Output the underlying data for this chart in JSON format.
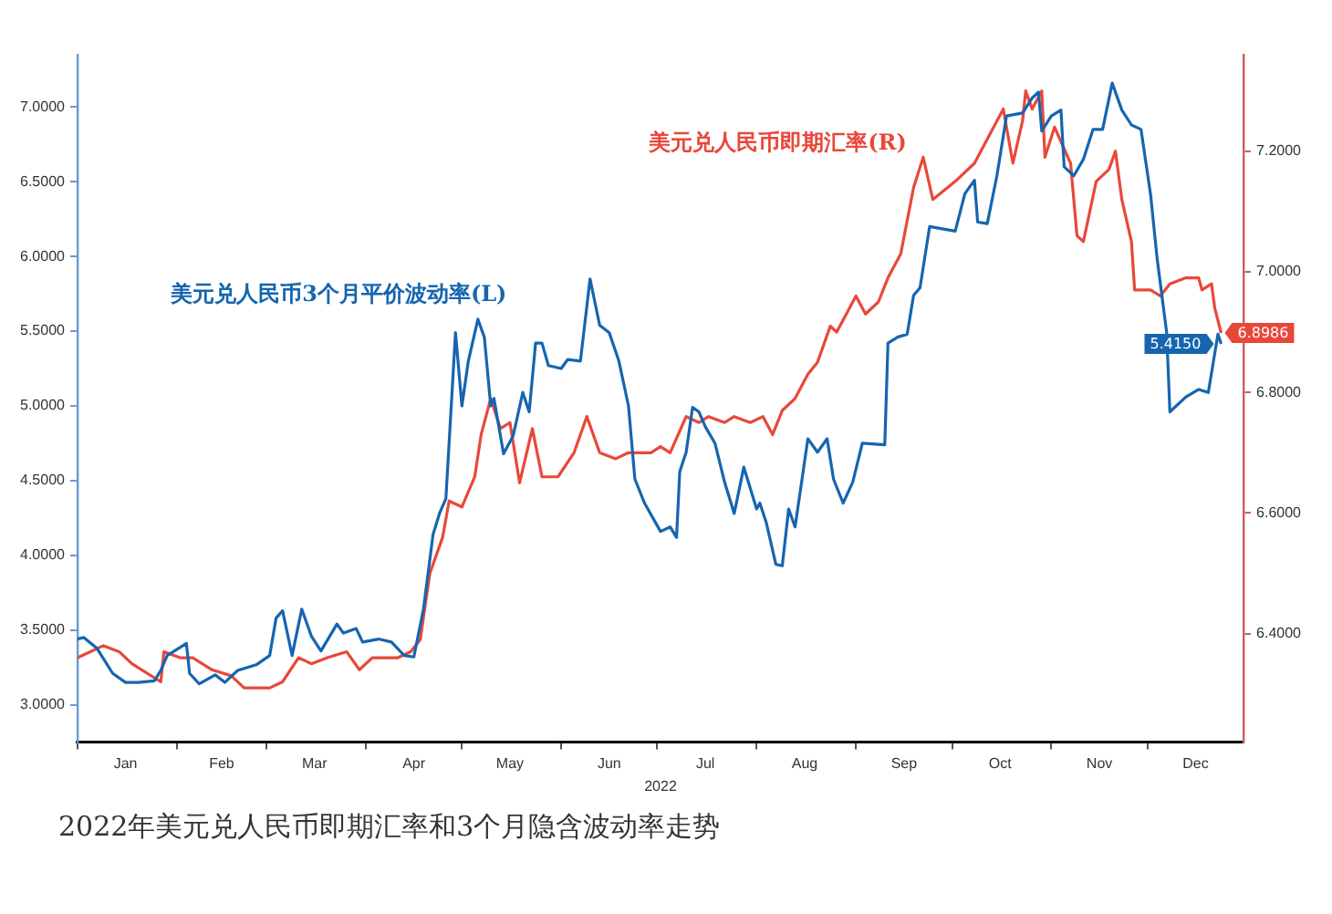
{
  "chart_data": {
    "type": "line",
    "title": "2022年美元兑人民币即期汇率和3个月隐含波动率走势",
    "xlabel": "2022",
    "xlim": [
      "2022-01-01",
      "2022-12-31"
    ],
    "xticks": [
      {
        "value": "2022-01-01",
        "label": null
      },
      {
        "value": "2022-01-16",
        "label": "Jan"
      },
      {
        "value": "2022-02-01",
        "label": null
      },
      {
        "value": "2022-02-15",
        "label": "Feb"
      },
      {
        "value": "2022-03-01",
        "label": null
      },
      {
        "value": "2022-03-16",
        "label": "Mar"
      },
      {
        "value": "2022-04-01",
        "label": null
      },
      {
        "value": "2022-04-16",
        "label": "Apr"
      },
      {
        "value": "2022-05-01",
        "label": null
      },
      {
        "value": "2022-05-16",
        "label": "May"
      },
      {
        "value": "2022-06-01",
        "label": null
      },
      {
        "value": "2022-06-16",
        "label": "Jun"
      },
      {
        "value": "2022-07-01",
        "label": null
      },
      {
        "value": "2022-07-16",
        "label": "Jul"
      },
      {
        "value": "2022-08-01",
        "label": null
      },
      {
        "value": "2022-08-16",
        "label": "Aug"
      },
      {
        "value": "2022-09-01",
        "label": null
      },
      {
        "value": "2022-09-16",
        "label": "Sep"
      },
      {
        "value": "2022-10-01",
        "label": null
      },
      {
        "value": "2022-10-16",
        "label": "Oct"
      },
      {
        "value": "2022-11-01",
        "label": null
      },
      {
        "value": "2022-11-16",
        "label": "Nov"
      },
      {
        "value": "2022-12-01",
        "label": null
      },
      {
        "value": "2022-12-16",
        "label": "Dec"
      }
    ],
    "ylim": [
      2.75,
      7.35
    ],
    "yticks": [
      {
        "value": 3,
        "label": "3.0000"
      },
      {
        "value": 3.5,
        "label": "3.5000"
      },
      {
        "value": 4,
        "label": "4.0000"
      },
      {
        "value": 4.5,
        "label": "4.5000"
      },
      {
        "value": 5,
        "label": "5.0000"
      },
      {
        "value": 5.5,
        "label": "5.5000"
      },
      {
        "value": 6,
        "label": "6.0000"
      },
      {
        "value": 6.5,
        "label": "6.5000"
      },
      {
        "value": 7,
        "label": "7.0000"
      }
    ],
    "y2lim": [
      6.22,
      7.36
    ],
    "y2ticks": [
      {
        "value": 6.4,
        "label": "6.4000"
      },
      {
        "value": 6.6,
        "label": "6.6000"
      },
      {
        "value": 6.8,
        "label": "6.8000"
      },
      {
        "value": 7,
        "label": "7.0000"
      },
      {
        "value": 7.2,
        "label": "7.2000"
      }
    ],
    "grid": false,
    "legend": false,
    "marker": "none",
    "line_style": "solid",
    "series": [
      {
        "name": "美元兑人民币3个月平价波动率(L)",
        "color": "#1565b0",
        "axis": "y",
        "x": [
          "2022-01-01",
          "2022-01-03",
          "2022-01-07",
          "2022-01-12",
          "2022-01-16",
          "2022-01-20",
          "2022-01-25",
          "2022-01-27",
          "2022-01-29",
          "2022-02-04",
          "2022-02-05",
          "2022-02-08",
          "2022-02-13",
          "2022-02-16",
          "2022-02-20",
          "2022-02-26",
          "2022-03-02",
          "2022-03-04",
          "2022-03-06",
          "2022-03-09",
          "2022-03-12",
          "2022-03-15",
          "2022-03-18",
          "2022-03-23",
          "2022-03-25",
          "2022-03-29",
          "2022-03-31",
          "2022-04-05",
          "2022-04-09",
          "2022-04-13",
          "2022-04-16",
          "2022-04-19",
          "2022-04-22",
          "2022-04-24",
          "2022-04-26",
          "2022-04-27",
          "2022-04-29",
          "2022-05-01",
          "2022-05-03",
          "2022-05-06",
          "2022-05-08",
          "2022-05-10",
          "2022-05-11",
          "2022-05-14",
          "2022-05-17",
          "2022-05-20",
          "2022-05-22",
          "2022-05-24",
          "2022-05-26",
          "2022-05-28",
          "2022-06-01",
          "2022-06-03",
          "2022-06-07",
          "2022-06-10",
          "2022-06-13",
          "2022-06-16",
          "2022-06-19",
          "2022-06-22",
          "2022-06-24",
          "2022-06-27",
          "2022-07-02",
          "2022-07-05",
          "2022-07-07",
          "2022-07-08",
          "2022-07-10",
          "2022-07-12",
          "2022-07-14",
          "2022-07-16",
          "2022-07-19",
          "2022-07-22",
          "2022-07-25",
          "2022-07-28",
          "2022-08-01",
          "2022-08-02",
          "2022-08-04",
          "2022-08-07",
          "2022-08-09",
          "2022-08-11",
          "2022-08-13",
          "2022-08-17",
          "2022-08-20",
          "2022-08-23",
          "2022-08-25",
          "2022-08-28",
          "2022-08-31",
          "2022-09-03",
          "2022-09-10",
          "2022-09-11",
          "2022-09-14",
          "2022-09-17",
          "2022-09-19",
          "2022-09-21",
          "2022-09-24",
          "2022-10-02",
          "2022-10-05",
          "2022-10-08",
          "2022-10-09",
          "2022-10-12",
          "2022-10-15",
          "2022-10-18",
          "2022-10-23",
          "2022-10-26",
          "2022-10-28",
          "2022-10-29",
          "2022-11-01",
          "2022-11-04",
          "2022-11-05",
          "2022-11-08",
          "2022-11-11",
          "2022-11-14",
          "2022-11-17",
          "2022-11-20",
          "2022-11-23",
          "2022-11-26",
          "2022-11-29",
          "2022-12-02",
          "2022-12-04",
          "2022-12-07",
          "2022-12-08",
          "2022-12-13",
          "2022-12-17",
          "2022-12-20",
          "2022-12-23",
          "2022-12-24"
        ],
        "values": [
          3.44,
          3.45,
          3.38,
          3.21,
          3.15,
          3.15,
          3.16,
          3.23,
          3.33,
          3.41,
          3.21,
          3.14,
          3.2,
          3.15,
          3.23,
          3.27,
          3.33,
          3.58,
          3.63,
          3.33,
          3.64,
          3.46,
          3.36,
          3.54,
          3.48,
          3.51,
          3.42,
          3.44,
          3.42,
          3.33,
          3.32,
          3.64,
          4.14,
          4.28,
          4.38,
          4.75,
          5.49,
          5.0,
          5.3,
          5.58,
          5.46,
          5.0,
          5.05,
          4.68,
          4.8,
          5.09,
          4.96,
          5.42,
          5.42,
          5.27,
          5.25,
          5.31,
          5.3,
          5.85,
          5.54,
          5.49,
          5.3,
          5.0,
          4.51,
          4.35,
          4.16,
          4.19,
          4.12,
          4.56,
          4.69,
          4.99,
          4.96,
          4.86,
          4.75,
          4.49,
          4.28,
          4.59,
          4.31,
          4.35,
          4.22,
          3.94,
          3.93,
          4.31,
          4.19,
          4.78,
          4.69,
          4.78,
          4.51,
          4.35,
          4.49,
          4.75,
          4.74,
          5.42,
          5.46,
          5.48,
          5.74,
          5.79,
          6.2,
          6.17,
          6.42,
          6.51,
          6.23,
          6.22,
          6.54,
          6.94,
          6.96,
          7.06,
          7.1,
          6.84,
          6.94,
          6.98,
          6.6,
          6.54,
          6.65,
          6.85,
          6.85,
          7.16,
          6.98,
          6.88,
          6.85,
          6.41,
          5.99,
          5.49,
          4.96,
          5.06,
          5.11,
          5.09,
          5.48,
          5.415
        ],
        "value_labels": [
          null,
          null,
          null,
          null,
          null,
          null,
          null,
          null,
          null,
          null,
          null,
          null,
          null,
          null,
          null,
          null,
          null,
          null,
          null,
          null,
          null,
          null,
          null,
          null,
          null,
          null,
          null,
          null,
          null,
          null,
          null,
          null,
          null,
          null,
          null,
          null,
          null,
          null,
          null,
          null,
          null,
          null,
          null,
          null,
          null,
          null,
          null,
          null,
          null,
          null,
          null,
          null,
          null,
          null,
          null,
          null,
          null,
          null,
          null,
          null,
          null,
          null,
          null,
          null,
          null,
          null,
          null,
          null,
          null,
          null,
          null,
          null,
          null,
          null,
          null,
          null,
          null,
          null,
          null,
          null,
          null,
          null,
          null,
          null,
          null,
          null,
          null,
          null,
          null,
          null,
          null,
          null,
          null,
          null,
          null,
          null,
          null,
          null,
          null,
          null,
          null,
          null,
          null,
          null,
          null,
          null,
          null,
          null,
          null,
          null,
          null,
          null,
          null,
          null,
          null,
          null,
          null,
          null,
          null,
          null,
          null,
          null,
          null,
          "5.4150"
        ]
      },
      {
        "name": "美元兑人民币即期汇率(R)",
        "color": "#e8483a",
        "axis": "y2",
        "x": [
          "2022-01-01",
          "2022-01-05",
          "2022-01-09",
          "2022-01-14",
          "2022-01-18",
          "2022-01-24",
          "2022-01-27",
          "2022-01-28",
          "2022-02-02",
          "2022-02-06",
          "2022-02-12",
          "2022-02-18",
          "2022-02-22",
          "2022-02-26",
          "2022-03-02",
          "2022-03-06",
          "2022-03-11",
          "2022-03-15",
          "2022-03-20",
          "2022-03-26",
          "2022-03-30",
          "2022-04-03",
          "2022-04-11",
          "2022-04-15",
          "2022-04-18",
          "2022-04-21",
          "2022-04-25",
          "2022-04-27",
          "2022-05-01",
          "2022-05-05",
          "2022-05-07",
          "2022-05-10",
          "2022-05-13",
          "2022-05-16",
          "2022-05-19",
          "2022-05-23",
          "2022-05-26",
          "2022-05-31",
          "2022-06-05",
          "2022-06-09",
          "2022-06-13",
          "2022-06-18",
          "2022-06-22",
          "2022-06-29",
          "2022-07-02",
          "2022-07-05",
          "2022-07-10",
          "2022-07-14",
          "2022-07-17",
          "2022-07-22",
          "2022-07-25",
          "2022-07-30",
          "2022-08-03",
          "2022-08-06",
          "2022-08-09",
          "2022-08-13",
          "2022-08-17",
          "2022-08-20",
          "2022-08-24",
          "2022-08-26",
          "2022-09-01",
          "2022-09-04",
          "2022-09-08",
          "2022-09-11",
          "2022-09-15",
          "2022-09-19",
          "2022-09-22",
          "2022-09-25",
          "2022-10-02",
          "2022-10-08",
          "2022-10-12",
          "2022-10-17",
          "2022-10-20",
          "2022-10-23",
          "2022-10-24",
          "2022-10-26",
          "2022-10-29",
          "2022-10-30",
          "2022-11-02",
          "2022-11-07",
          "2022-11-09",
          "2022-11-11",
          "2022-11-15",
          "2022-11-19",
          "2022-11-21",
          "2022-11-23",
          "2022-11-26",
          "2022-11-27",
          "2022-12-02",
          "2022-12-05",
          "2022-12-08",
          "2022-12-13",
          "2022-12-17",
          "2022-12-18",
          "2022-12-21",
          "2022-12-22",
          "2022-12-24"
        ],
        "values": [
          6.36,
          6.37,
          6.38,
          6.37,
          6.35,
          6.33,
          6.32,
          6.37,
          6.36,
          6.36,
          6.34,
          6.33,
          6.31,
          6.31,
          6.31,
          6.32,
          6.36,
          6.35,
          6.36,
          6.37,
          6.34,
          6.36,
          6.36,
          6.37,
          6.39,
          6.5,
          6.56,
          6.62,
          6.61,
          6.66,
          6.73,
          6.79,
          6.74,
          6.75,
          6.65,
          6.74,
          6.66,
          6.66,
          6.7,
          6.76,
          6.7,
          6.69,
          6.7,
          6.7,
          6.71,
          6.7,
          6.76,
          6.75,
          6.76,
          6.75,
          6.76,
          6.75,
          6.76,
          6.73,
          6.77,
          6.79,
          6.83,
          6.85,
          6.91,
          6.9,
          6.96,
          6.93,
          6.95,
          6.99,
          7.03,
          7.14,
          7.19,
          7.12,
          7.15,
          7.18,
          7.22,
          7.27,
          7.18,
          7.25,
          7.3,
          7.27,
          7.3,
          7.19,
          7.24,
          7.18,
          7.06,
          7.05,
          7.15,
          7.17,
          7.2,
          7.12,
          7.05,
          6.97,
          6.97,
          6.96,
          6.98,
          6.99,
          6.99,
          6.97,
          6.98,
          6.94,
          6.8986
        ],
        "value_labels": [
          null,
          null,
          null,
          null,
          null,
          null,
          null,
          null,
          null,
          null,
          null,
          null,
          null,
          null,
          null,
          null,
          null,
          null,
          null,
          null,
          null,
          null,
          null,
          null,
          null,
          null,
          null,
          null,
          null,
          null,
          null,
          null,
          null,
          null,
          null,
          null,
          null,
          null,
          null,
          null,
          null,
          null,
          null,
          null,
          null,
          null,
          null,
          null,
          null,
          null,
          null,
          null,
          null,
          null,
          null,
          null,
          null,
          null,
          null,
          null,
          null,
          null,
          null,
          null,
          null,
          null,
          null,
          null,
          null,
          null,
          null,
          null,
          null,
          null,
          null,
          null,
          null,
          null,
          null,
          null,
          null,
          null,
          null,
          null,
          null,
          null,
          null,
          null,
          null,
          null,
          null,
          null,
          null,
          null,
          null,
          null,
          "6.8986"
        ]
      }
    ]
  }
}
